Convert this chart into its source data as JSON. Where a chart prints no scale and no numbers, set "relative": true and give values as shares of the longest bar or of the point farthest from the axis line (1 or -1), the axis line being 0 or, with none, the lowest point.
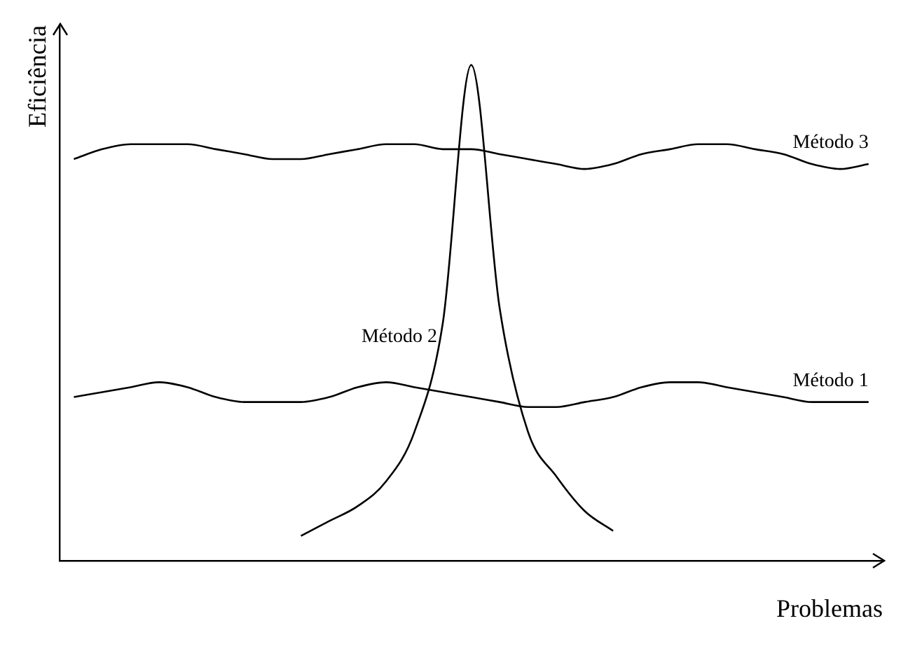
{
  "chart_data": {
    "type": "line",
    "relative": true,
    "xlabel": "Problemas",
    "ylabel": "Eficiência",
    "categories": [
      null,
      null,
      null,
      null,
      null,
      null,
      null,
      null,
      null,
      null,
      null,
      null,
      null,
      null,
      null,
      null,
      null,
      null,
      null,
      null,
      null,
      null,
      null,
      null,
      null,
      null,
      null,
      null,
      null
    ],
    "series": [
      {
        "name": "Método 1",
        "color": "#000000",
        "values": [
          0.33,
          0.34,
          0.35,
          0.36,
          0.35,
          0.33,
          0.32,
          0.32,
          0.32,
          0.33,
          0.35,
          0.36,
          0.35,
          0.34,
          0.33,
          0.32,
          0.31,
          0.31,
          0.32,
          0.33,
          0.35,
          0.36,
          0.36,
          0.35,
          0.34,
          0.33,
          0.32,
          0.32,
          0.32
        ]
      },
      {
        "name": "Método 2",
        "color": "#000000",
        "values": [
          null,
          null,
          null,
          null,
          null,
          null,
          null,
          null,
          0.05,
          0.08,
          0.11,
          0.16,
          0.26,
          0.48,
          1,
          0.51,
          0.26,
          0.17,
          0.1,
          0.06,
          null,
          null,
          null,
          null,
          null,
          null,
          null,
          null,
          null
        ]
      },
      {
        "name": "Método 3",
        "color": "#000000",
        "values": [
          0.81,
          0.83,
          0.84,
          0.84,
          0.84,
          0.83,
          0.82,
          0.81,
          0.81,
          0.82,
          0.83,
          0.84,
          0.84,
          0.83,
          0.83,
          0.82,
          0.81,
          0.8,
          0.79,
          0.8,
          0.82,
          0.83,
          0.84,
          0.84,
          0.83,
          0.82,
          0.8,
          0.79,
          0.8
        ]
      }
    ],
    "legend": false,
    "grid": false,
    "marker": "none",
    "line_style": "solid"
  }
}
